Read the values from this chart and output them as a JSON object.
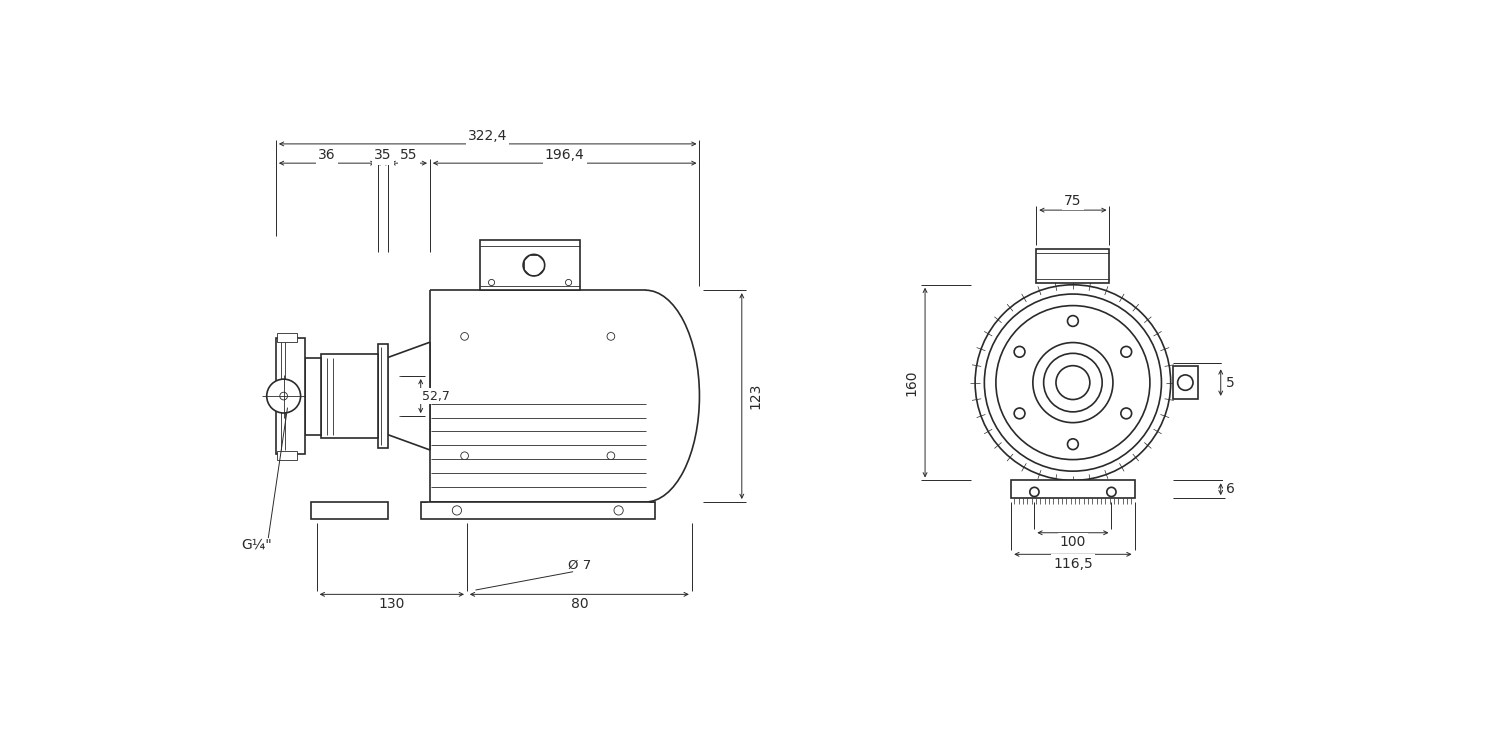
{
  "bg_color": "#ffffff",
  "line_color": "#2a2a2a",
  "lw_main": 1.2,
  "lw_thin": 0.6,
  "lw_dim": 0.7,
  "fig_width": 15.0,
  "fig_height": 7.5,
  "dims_left": {
    "322_4": "322,4",
    "36": "36",
    "35": "35",
    "55": "55",
    "196_4": "196,4",
    "130": "130",
    "80": "80",
    "diam7": "Ø 7",
    "52_7": "52,7",
    "123": "123",
    "G14": "G¼\""
  },
  "dims_right": {
    "75": "75",
    "5": "5",
    "160": "160",
    "6": "6",
    "100": "100",
    "116_5": "116,5"
  }
}
